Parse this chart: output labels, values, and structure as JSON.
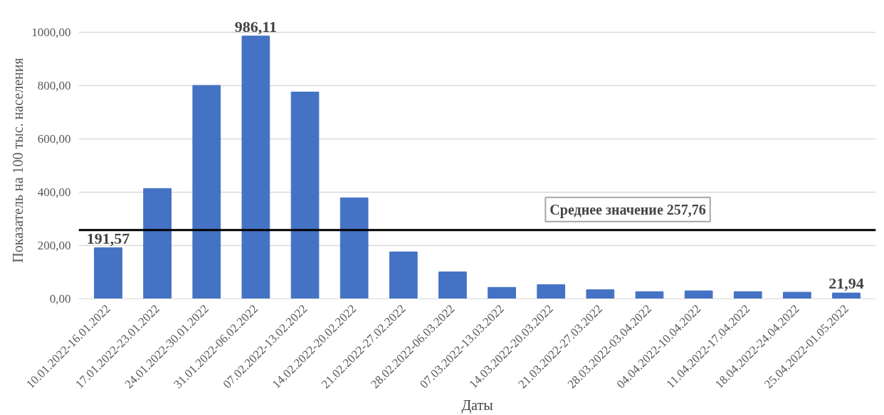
{
  "chart_data": {
    "type": "bar",
    "xlabel": "Даты",
    "ylabel": "Показатель на 100 тыс. населения",
    "categories": [
      "10.01.2022-16.01.2022",
      "17.01.2022-23.01.2022",
      "24.01.2022-30.01.2022",
      "31.01.2022-06.02.2022",
      "07.02.2022-13.02.2022",
      "14.02.2022-20.02.2022",
      "21.02.2022-27.02.2022",
      "28.02.2022-06.03.2022",
      "07.03.2022-13.03.2022",
      "14.03.2022-20.03.2022",
      "21.03.2022-27.03.2022",
      "28.03.2022-03.04.2022",
      "04.04.2022-10.04.2022",
      "11.04.2022-17.04.2022",
      "18.04.2022-24.04.2022",
      "25.04.2022-01.05.2022"
    ],
    "values": [
      191.57,
      414,
      801,
      986.11,
      776,
      379,
      176,
      101,
      43,
      53,
      34,
      27,
      30,
      27,
      25,
      21.94
    ],
    "value_labels": [
      "191,57",
      null,
      null,
      "986,11",
      null,
      null,
      null,
      null,
      null,
      null,
      null,
      null,
      null,
      null,
      null,
      "21,94"
    ],
    "color": "#4472c4",
    "ylim": [
      0,
      1000
    ],
    "yticks": [
      {
        "value": 0,
        "label": "0,00"
      },
      {
        "value": 200,
        "label": "200,00"
      },
      {
        "value": 400,
        "label": "400,00"
      },
      {
        "value": 600,
        "label": "600,00"
      },
      {
        "value": 800,
        "label": "800,00"
      },
      {
        "value": 1000,
        "label": "1000,00"
      }
    ],
    "grid": "y",
    "ref_lines": [
      {
        "axis": "y",
        "value": 257.76,
        "label": "Среднее значение 257,76",
        "color": "#000000"
      }
    ]
  }
}
